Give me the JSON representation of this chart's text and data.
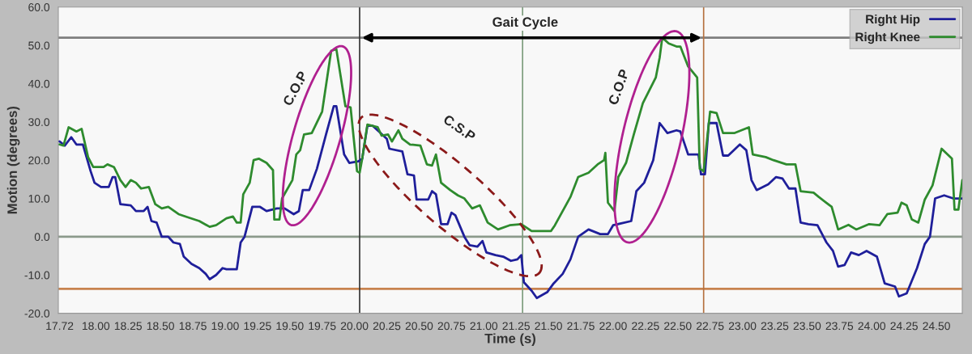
{
  "chart_data": {
    "type": "line",
    "xlabel": "Time (s)",
    "ylabel": "Motion (degrees)",
    "xlim": [
      17.71,
      24.7
    ],
    "ylim": [
      -20,
      60
    ],
    "xticks": [
      17.72,
      {
        "value": 18.0,
        "label": "18.00"
      },
      18.25,
      {
        "value": 18.5,
        "label": "18.50"
      },
      18.75,
      {
        "value": 19.0,
        "label": "19.00"
      },
      19.25,
      {
        "value": 19.5,
        "label": "19.50"
      },
      19.75,
      {
        "value": 20.0,
        "label": "20.00"
      },
      20.25,
      {
        "value": 20.5,
        "label": "20.50"
      },
      20.75,
      {
        "value": 21.0,
        "label": "21.00"
      },
      21.25,
      {
        "value": 21.5,
        "label": "21.50"
      },
      21.75,
      {
        "value": 22.0,
        "label": "22.00"
      },
      22.25,
      {
        "value": 22.5,
        "label": "22.50"
      },
      22.75,
      {
        "value": 23.0,
        "label": "23.00"
      },
      23.25,
      {
        "value": 23.5,
        "label": "23.50"
      },
      23.75,
      {
        "value": 24.0,
        "label": "24.00"
      },
      24.25,
      {
        "value": 24.5,
        "label": "24.50"
      }
    ],
    "yticks": [
      {
        "value": -20,
        "label": "-20.0"
      },
      {
        "value": -10,
        "label": "-10.0"
      },
      {
        "value": 0,
        "label": "0.0"
      },
      {
        "value": 10,
        "label": "10.0"
      },
      {
        "value": 20,
        "label": "20.0"
      },
      {
        "value": 30,
        "label": "30.0"
      },
      {
        "value": 40,
        "label": "40.0"
      },
      {
        "value": 50,
        "label": "50.0"
      },
      {
        "value": 60,
        "label": "60.0"
      }
    ],
    "series": [
      {
        "name": "Right Hip",
        "color": "#1f1f9a",
        "x": [
          17.72,
          17.76,
          17.81,
          17.85,
          17.9,
          17.96,
          17.99,
          18.04,
          18.1,
          18.13,
          18.15,
          18.19,
          18.27,
          18.31,
          18.37,
          18.4,
          18.43,
          18.47,
          18.51,
          18.56,
          18.6,
          18.65,
          18.68,
          18.74,
          18.8,
          18.85,
          18.88,
          18.93,
          18.98,
          19.01,
          19.09,
          19.12,
          19.15,
          19.21,
          19.27,
          19.32,
          19.4,
          19.46,
          19.53,
          19.57,
          19.6,
          19.65,
          19.71,
          19.78,
          19.84,
          19.86,
          19.92,
          19.96,
          20.03,
          20.06,
          20.1,
          20.14,
          20.25,
          20.27,
          20.37,
          20.41,
          20.46,
          20.48,
          20.57,
          20.6,
          20.63,
          20.67,
          20.72,
          20.75,
          20.78,
          20.85,
          20.89,
          20.95,
          20.99,
          21.02,
          21.09,
          21.15,
          21.21,
          21.26,
          21.29,
          21.31,
          21.37,
          21.41,
          21.49,
          21.54,
          21.61,
          21.67,
          21.73,
          21.81,
          21.9,
          21.96,
          22.0,
          22.14,
          22.18,
          22.24,
          22.31,
          22.36,
          22.42,
          22.49,
          22.52,
          22.58,
          22.66,
          22.68,
          22.71,
          22.74,
          22.8,
          22.85,
          22.89,
          22.98,
          23.03,
          23.07,
          23.11,
          23.2,
          23.26,
          23.31,
          23.36,
          23.41,
          23.45,
          23.51,
          23.58,
          23.65,
          23.7,
          23.74,
          23.79,
          23.84,
          23.9,
          23.96,
          24.04,
          24.1,
          24.18,
          24.21,
          24.27,
          24.35,
          24.41,
          24.45,
          24.49,
          24.56,
          24.63,
          24.7
        ],
        "values": [
          24.9,
          23.8,
          26.0,
          24.1,
          24.1,
          17.1,
          14.1,
          13.0,
          13.0,
          15.6,
          15.6,
          8.5,
          8.2,
          6.7,
          6.7,
          7.8,
          4.1,
          3.7,
          0.0,
          0.0,
          -1.5,
          -1.9,
          -5.2,
          -7.1,
          -8.2,
          -9.7,
          -11.1,
          -10.0,
          -8.2,
          -8.5,
          -8.5,
          -1.5,
          0.0,
          7.8,
          7.8,
          6.7,
          7.4,
          7.4,
          5.9,
          6.7,
          12.2,
          12.2,
          17.8,
          26.7,
          34.1,
          34.1,
          21.5,
          19.3,
          19.7,
          20.4,
          29.0,
          29.0,
          25.6,
          23.0,
          22.3,
          16.3,
          16.0,
          9.7,
          9.7,
          11.9,
          11.1,
          3.3,
          3.3,
          6.3,
          5.6,
          0.0,
          -2.2,
          -2.6,
          -1.1,
          -4.1,
          -4.8,
          -5.2,
          -6.3,
          -5.9,
          -4.8,
          -11.9,
          -14.1,
          -16.0,
          -14.5,
          -12.2,
          -9.7,
          -5.9,
          0.0,
          1.9,
          0.7,
          0.7,
          3.0,
          4.1,
          11.9,
          14.1,
          20.0,
          29.7,
          27.1,
          27.8,
          27.5,
          21.5,
          21.5,
          16.3,
          16.3,
          29.7,
          29.7,
          21.2,
          21.2,
          24.1,
          22.6,
          14.8,
          12.2,
          13.7,
          15.6,
          15.2,
          12.6,
          12.6,
          3.7,
          3.3,
          3.0,
          -1.5,
          -3.7,
          -7.8,
          -7.4,
          -4.1,
          -4.8,
          -3.7,
          -5.2,
          -12.2,
          -13.0,
          -15.6,
          -14.8,
          -8.2,
          -1.9,
          0.0,
          10.0,
          10.8,
          10.0,
          10.0
        ]
      },
      {
        "name": "Right Knee",
        "color": "#2e8b2e",
        "x": [
          17.72,
          17.75,
          17.79,
          17.85,
          17.89,
          17.94,
          17.98,
          18.06,
          18.09,
          18.14,
          18.19,
          18.23,
          18.27,
          18.31,
          18.35,
          18.41,
          18.46,
          18.51,
          18.56,
          18.64,
          18.7,
          18.8,
          18.88,
          18.93,
          19.01,
          19.06,
          19.09,
          19.12,
          19.14,
          19.19,
          19.22,
          19.26,
          19.32,
          19.37,
          19.38,
          19.42,
          19.44,
          19.52,
          19.55,
          19.58,
          19.61,
          19.67,
          19.75,
          19.82,
          19.86,
          19.93,
          19.97,
          20.02,
          20.04,
          20.06,
          20.1,
          20.18,
          20.21,
          20.26,
          20.29,
          20.34,
          20.37,
          20.43,
          20.51,
          20.56,
          20.6,
          20.63,
          20.67,
          20.74,
          20.8,
          20.85,
          20.91,
          20.97,
          21.03,
          21.11,
          21.2,
          21.29,
          21.37,
          21.52,
          21.55,
          21.61,
          21.67,
          21.73,
          21.81,
          21.88,
          21.93,
          21.94,
          21.96,
          22.01,
          22.04,
          22.1,
          22.16,
          22.23,
          22.33,
          22.36,
          22.38,
          22.43,
          22.49,
          22.52,
          22.58,
          22.65,
          22.67,
          22.7,
          22.75,
          22.8,
          22.85,
          22.94,
          23.05,
          23.08,
          23.18,
          23.24,
          23.34,
          23.41,
          23.45,
          23.55,
          23.59,
          23.69,
          23.74,
          23.82,
          23.88,
          23.98,
          24.06,
          24.12,
          24.2,
          24.23,
          24.27,
          24.31,
          24.36,
          24.41,
          24.47,
          24.54,
          24.62,
          24.64,
          24.67,
          24.7
        ],
        "values": [
          24.1,
          23.8,
          28.6,
          27.5,
          28.2,
          20.8,
          18.2,
          18.2,
          18.9,
          18.2,
          14.8,
          13.0,
          14.8,
          14.1,
          12.6,
          13.0,
          8.5,
          7.4,
          7.8,
          5.9,
          5.2,
          4.1,
          2.6,
          3.0,
          4.8,
          5.3,
          3.7,
          3.7,
          11.1,
          14.1,
          20.0,
          20.4,
          19.3,
          17.4,
          4.5,
          4.5,
          10.0,
          14.8,
          21.5,
          22.6,
          26.7,
          27.1,
          32.7,
          48.6,
          49.0,
          34.1,
          33.8,
          17.1,
          16.7,
          20.4,
          29.3,
          28.6,
          26.4,
          26.7,
          24.9,
          27.8,
          25.6,
          24.1,
          23.8,
          18.9,
          18.6,
          21.5,
          14.1,
          12.2,
          10.8,
          10.0,
          7.4,
          8.2,
          3.7,
          1.9,
          3.0,
          3.3,
          1.5,
          1.5,
          3.0,
          6.7,
          10.4,
          15.6,
          16.7,
          18.9,
          20.0,
          21.9,
          8.9,
          6.7,
          15.6,
          19.3,
          26.7,
          34.9,
          41.6,
          46.8,
          52.0,
          50.5,
          49.7,
          49.7,
          44.5,
          41.6,
          17.8,
          17.1,
          32.7,
          32.3,
          27.1,
          27.1,
          28.6,
          21.5,
          20.8,
          20.0,
          18.9,
          18.9,
          11.9,
          11.5,
          10.4,
          7.8,
          1.9,
          3.1,
          1.9,
          3.3,
          3.0,
          5.9,
          6.3,
          8.9,
          8.2,
          4.5,
          3.7,
          9.7,
          13.4,
          23.0,
          20.4,
          7.1,
          7.1,
          14.8
        ]
      }
    ],
    "ref_lines": [
      {
        "axis": "y",
        "value": 52,
        "color": "#7f7f7f"
      },
      {
        "axis": "y",
        "value": 0,
        "color": "#8c9a8c"
      },
      {
        "axis": "y",
        "value": -13.6,
        "color": "#c8834f"
      },
      {
        "axis": "x",
        "value": 20.04,
        "color": "#333333"
      },
      {
        "axis": "x",
        "value": 21.3,
        "color": "#7c9c7c"
      },
      {
        "axis": "x",
        "value": 22.7,
        "color": "#b5703f"
      }
    ],
    "annotations": [
      {
        "text": "Gait Cycle",
        "x": 21.32,
        "y": 55.8
      },
      "C.O.P",
      "C.S.P",
      "C.O.P"
    ],
    "legend": "top right",
    "line_style": "solid",
    "marker": "none",
    "grid": false
  }
}
